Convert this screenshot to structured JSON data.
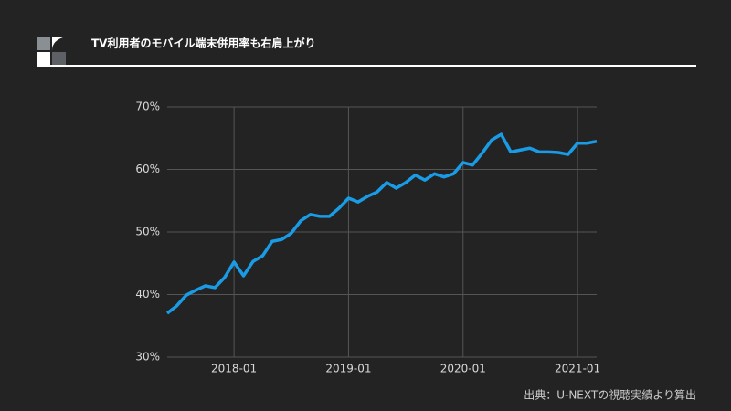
{
  "chart_data": {
    "type": "line",
    "title": "TV利用者のモバイル端末併用率も右肩上がり",
    "source": "出典：U-NEXTの視聴実績より算出",
    "x": [
      "2017-06",
      "2017-07",
      "2017-08",
      "2017-09",
      "2017-10",
      "2017-11",
      "2017-12",
      "2018-01",
      "2018-02",
      "2018-03",
      "2018-04",
      "2018-05",
      "2018-06",
      "2018-07",
      "2018-08",
      "2018-09",
      "2018-10",
      "2018-11",
      "2018-12",
      "2019-01",
      "2019-02",
      "2019-03",
      "2019-04",
      "2019-05",
      "2019-06",
      "2019-07",
      "2019-08",
      "2019-09",
      "2019-10",
      "2019-11",
      "2019-12",
      "2020-01",
      "2020-02",
      "2020-03",
      "2020-04",
      "2020-05",
      "2020-06",
      "2020-07",
      "2020-08",
      "2020-09",
      "2020-10",
      "2020-11",
      "2020-12",
      "2021-01",
      "2021-02",
      "2021-03"
    ],
    "series": [
      {
        "color": "#1a9be6",
        "values": [
          37.0,
          38.2,
          39.9,
          40.7,
          41.4,
          41.1,
          42.7,
          45.2,
          43.0,
          45.3,
          46.2,
          48.5,
          48.8,
          49.8,
          51.8,
          52.8,
          52.5,
          52.5,
          53.8,
          55.4,
          54.8,
          55.7,
          56.4,
          57.9,
          57.0,
          57.9,
          59.1,
          58.3,
          59.3,
          58.8,
          59.3,
          61.1,
          60.7,
          62.6,
          64.7,
          65.6,
          62.8,
          63.1,
          63.4,
          62.8,
          62.8,
          62.7,
          62.4,
          64.2,
          64.2,
          64.5
        ]
      }
    ],
    "xlim": [
      "2017-06",
      "2021-03"
    ],
    "xticks": [
      "2018-01",
      "2019-01",
      "2020-01",
      "2021-01"
    ],
    "ylim": [
      30,
      70
    ],
    "yticks": [
      {
        "value": 30,
        "label": "30%"
      },
      {
        "value": 40,
        "label": "40%"
      },
      {
        "value": 50,
        "label": "50%"
      },
      {
        "value": 60,
        "label": "60%"
      },
      {
        "value": 70,
        "label": "70%"
      }
    ],
    "grid": true
  }
}
